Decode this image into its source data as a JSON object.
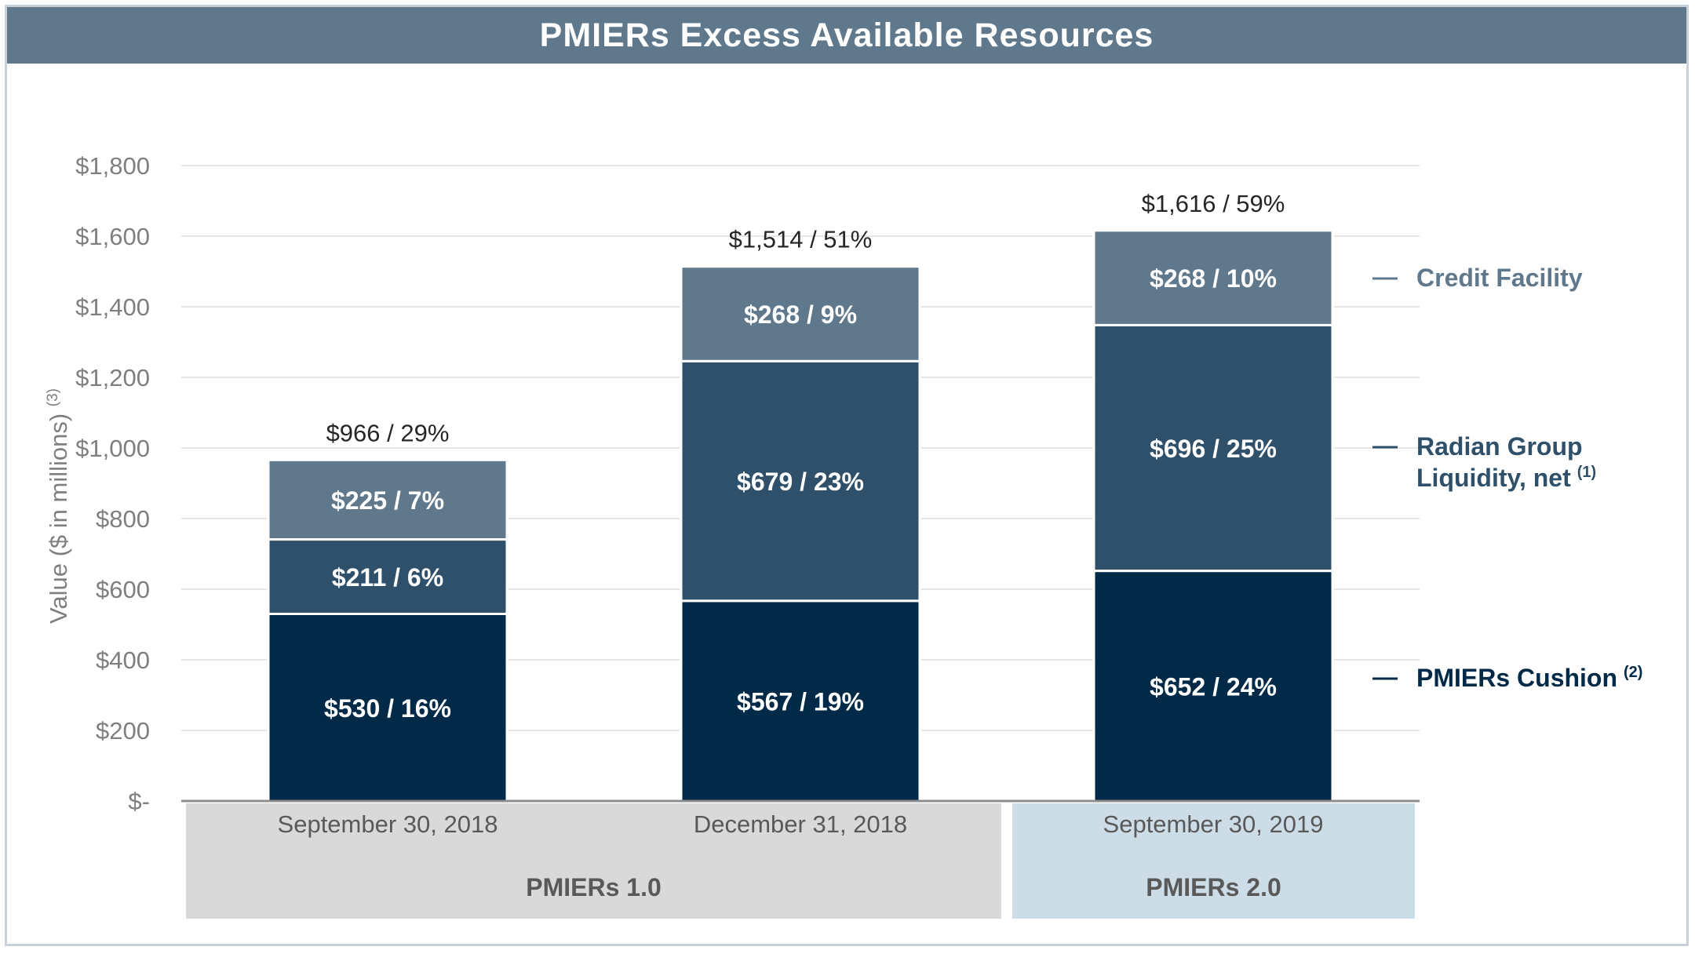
{
  "chart_data": {
    "type": "bar",
    "stacked": true,
    "title": "PMIERs Excess Available Resources",
    "ylabel": "Value ($ in millions)",
    "ylabel_footnote": "(3)",
    "ylim": [
      0,
      1800
    ],
    "ytick_values": [
      0,
      200,
      400,
      600,
      800,
      1000,
      1200,
      1400,
      1600,
      1800
    ],
    "ytick_labels": [
      "$-",
      "$200",
      "$400",
      "$600",
      "$800",
      "$1,000",
      "$1,200",
      "$1,400",
      "$1,600",
      "$1,800"
    ],
    "grid": true,
    "categories": [
      "September 30, 2018",
      "December 31, 2018",
      "September 30, 2019"
    ],
    "series": [
      {
        "name": "PMIERs Cushion",
        "footnote": "(2)",
        "color": "#002a48",
        "values": [
          530,
          567,
          652
        ],
        "labels": [
          "$530 / 16%",
          "$567 / 19%",
          "$652 / 24%"
        ]
      },
      {
        "name": "Radian Group Liquidity, net",
        "name_lines": [
          "Radian Group",
          "Liquidity, net"
        ],
        "footnote": "(1)",
        "color": "#2f506a",
        "values": [
          211,
          679,
          696
        ],
        "labels": [
          "$211 / 6%",
          "$679 / 23%",
          "$696 / 25%"
        ]
      },
      {
        "name": "Credit Facility",
        "footnote": "",
        "color": "#5f788c",
        "values": [
          225,
          268,
          268
        ],
        "labels": [
          "$225 / 7%",
          "$268 / 9%",
          "$268 / 10%"
        ]
      }
    ],
    "totals": [
      966,
      1514,
      1616
    ],
    "total_labels": [
      "$966 / 29%",
      "$1,514 / 51%",
      "$1,616 / 59%"
    ],
    "groups": [
      {
        "label": "PMIERs 1.0",
        "categories": [
          0,
          1
        ],
        "color": "#d9d9d9"
      },
      {
        "label": "PMIERs 2.0",
        "categories": [
          2
        ],
        "color": "#cddde8"
      }
    ],
    "legend_position": "right"
  }
}
